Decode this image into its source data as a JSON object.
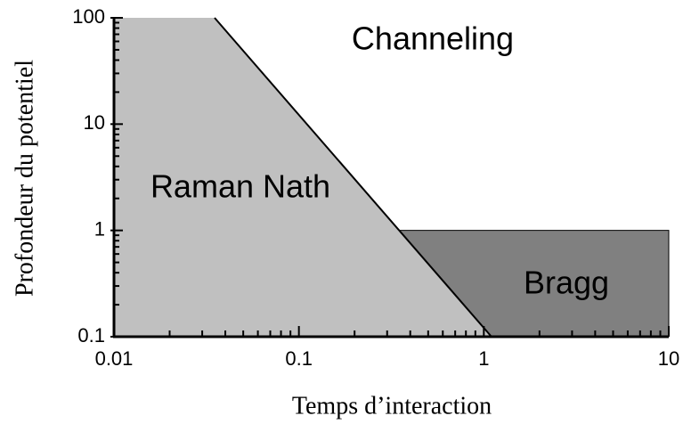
{
  "chart_data": {
    "type": "region",
    "xlabel": "Temps d’interaction",
    "ylabel": "Profondeur du potentiel",
    "xscale": "log",
    "yscale": "log",
    "xlim": [
      0.01,
      10
    ],
    "ylim": [
      0.1,
      100
    ],
    "xticks": [
      0.01,
      0.1,
      1,
      10
    ],
    "yticks": [
      0.1,
      1,
      10,
      100
    ],
    "minor_ticks": true,
    "regions": [
      {
        "name": "Raman Nath",
        "color": "#c0c0c0",
        "x": [
          0.01,
          0.01,
          0.035,
          1.1
        ],
        "y": [
          0.1,
          100,
          100,
          0.1
        ]
      },
      {
        "name": "Bragg",
        "color": "#808080",
        "x": [
          0.35,
          10,
          10,
          1.1
        ],
        "y": [
          1,
          1,
          0.1,
          0.1
        ]
      },
      {
        "name": "Channeling",
        "color": "#ffffff",
        "x": [
          0.035,
          10,
          10,
          0.35
        ],
        "y": [
          100,
          100,
          1,
          1
        ]
      }
    ]
  }
}
